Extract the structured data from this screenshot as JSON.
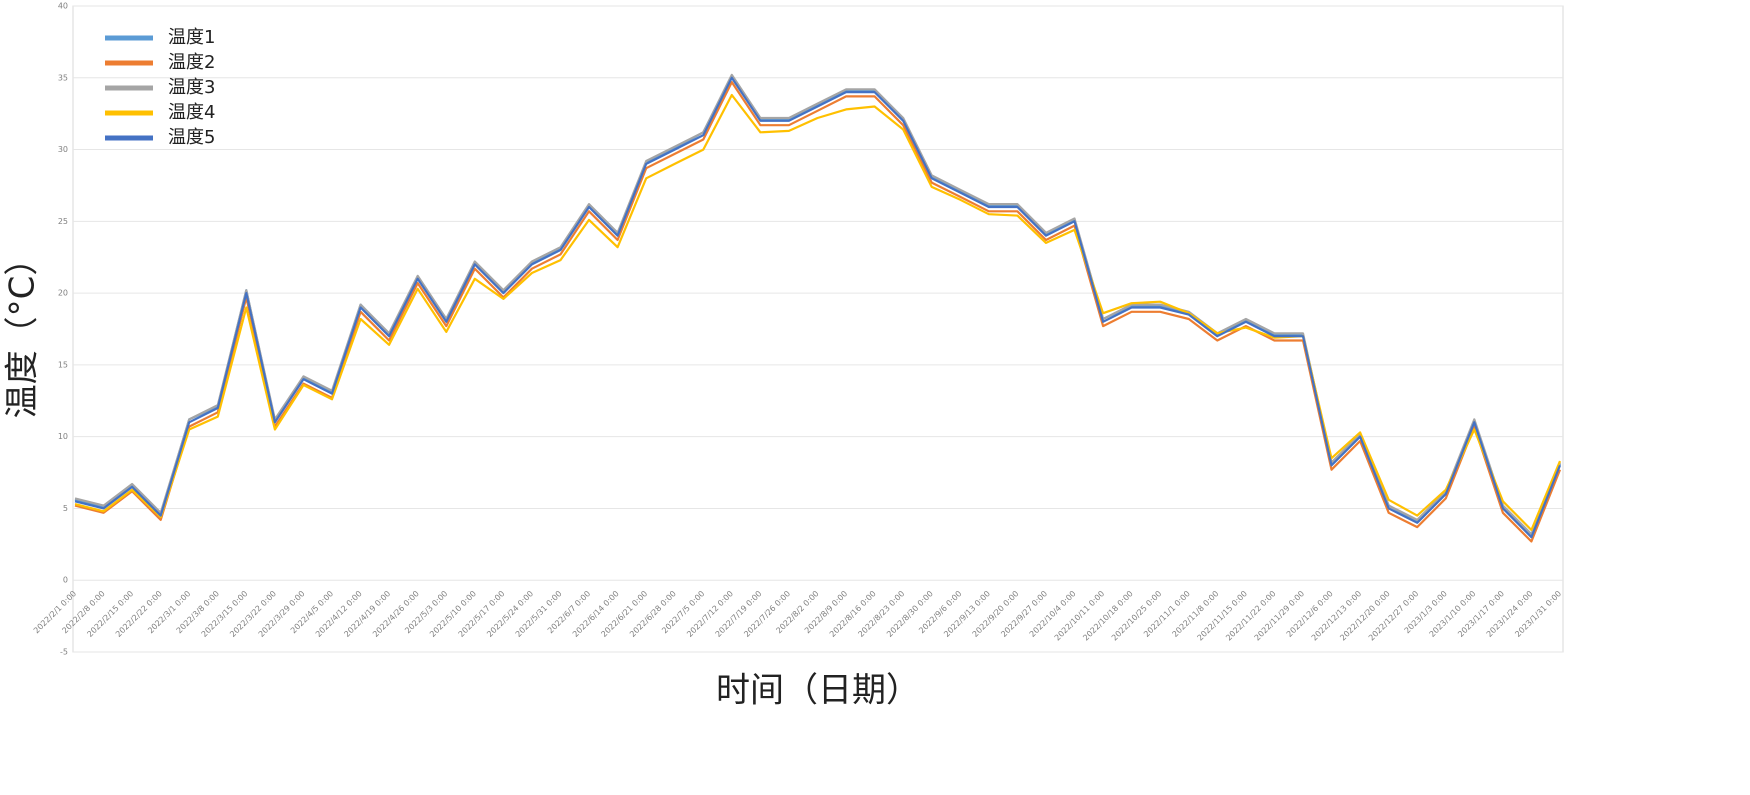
{
  "chart_data": {
    "type": "line",
    "y_label": "温度（°C）",
    "x_label": "时间（日期）",
    "categories": [
      "2022/2/1 0:00",
      "2022/2/8 0:00",
      "2022/2/15 0:00",
      "2022/2/22 0:00",
      "2022/3/1 0:00",
      "2022/3/8 0:00",
      "2022/3/15 0:00",
      "2022/3/22 0:00",
      "2022/3/29 0:00",
      "2022/4/5 0:00",
      "2022/4/12 0:00",
      "2022/4/19 0:00",
      "2022/4/26 0:00",
      "2022/5/3 0:00",
      "2022/5/10 0:00",
      "2022/5/17 0:00",
      "2022/5/24 0:00",
      "2022/5/31 0:00",
      "2022/6/7 0:00",
      "2022/6/14 0:00",
      "2022/6/21 0:00",
      "2022/6/28 0:00",
      "2022/7/5 0:00",
      "2022/7/12 0:00",
      "2022/7/19 0:00",
      "2022/7/26 0:00",
      "2022/8/2 0:00",
      "2022/8/9 0:00",
      "2022/8/16 0:00",
      "2022/8/23 0:00",
      "2022/8/30 0:00",
      "2022/9/6 0:00",
      "2022/9/13 0:00",
      "2022/9/20 0:00",
      "2022/9/27 0:00",
      "2022/10/4 0:00",
      "2022/10/11 0:00",
      "2022/10/18 0:00",
      "2022/10/25 0:00",
      "2022/11/1 0:00",
      "2022/11/8 0:00",
      "2022/11/15 0:00",
      "2022/11/22 0:00",
      "2022/11/29 0:00",
      "2022/12/6 0:00",
      "2022/12/13 0:00",
      "2022/12/20 0:00",
      "2022/12/27 0:00",
      "2023/1/3 0:00",
      "2023/1/10 0:00",
      "2023/1/17 0:00",
      "2023/1/24 0:00",
      "2023/1/31 0:00"
    ],
    "series": [
      {
        "name": "温度1",
        "color": "#5b9bd5",
        "values": [
          5.6,
          5.1,
          6.6,
          4.6,
          11.2,
          12.1,
          20.2,
          11.1,
          14.1,
          13.1,
          19.2,
          17.1,
          21.1,
          18.2,
          22.1,
          20.1,
          22.1,
          23.1,
          26.1,
          24.1,
          29.1,
          30.1,
          31.2,
          35.1,
          32.1,
          32.1,
          33.1,
          34.1,
          34.1,
          32.1,
          28.1,
          27.1,
          26.1,
          26.1,
          24.1,
          25.1,
          18.2,
          19.1,
          19.1,
          18.6,
          17.1,
          18.1,
          17.1,
          17.1,
          8.2,
          10.1,
          5.2,
          4.1,
          6.1,
          11.1,
          5.2,
          3.2,
          8.1
        ]
      },
      {
        "name": "温度2",
        "color": "#ed7d31",
        "values": [
          5.2,
          4.7,
          6.2,
          4.2,
          10.7,
          11.7,
          19.7,
          10.7,
          13.7,
          12.7,
          18.7,
          16.7,
          20.7,
          17.7,
          21.7,
          19.7,
          21.7,
          22.7,
          25.7,
          23.7,
          28.7,
          29.7,
          30.7,
          34.7,
          31.7,
          31.7,
          32.7,
          33.7,
          33.7,
          31.7,
          27.7,
          26.7,
          25.7,
          25.7,
          23.7,
          24.7,
          17.7,
          18.7,
          18.7,
          18.2,
          16.7,
          17.7,
          16.7,
          16.7,
          7.7,
          9.7,
          4.7,
          3.7,
          5.7,
          10.7,
          4.7,
          2.7,
          7.7
        ]
      },
      {
        "name": "温度3",
        "color": "#a5a5a5",
        "values": [
          5.7,
          5.2,
          6.7,
          4.7,
          11.2,
          12.2,
          20.2,
          11.2,
          14.2,
          13.2,
          19.2,
          17.2,
          21.2,
          18.2,
          22.2,
          20.2,
          22.2,
          23.2,
          26.2,
          24.2,
          29.2,
          30.2,
          31.2,
          35.2,
          32.2,
          32.2,
          33.2,
          34.2,
          34.2,
          32.2,
          28.2,
          27.2,
          26.2,
          26.2,
          24.2,
          25.2,
          18.2,
          19.2,
          19.2,
          18.7,
          17.2,
          18.2,
          17.2,
          17.2,
          8.2,
          10.2,
          5.2,
          4.2,
          6.2,
          11.2,
          5.2,
          3.2,
          8.2
        ]
      },
      {
        "name": "温度4",
        "color": "#ffc000",
        "values": [
          5.3,
          4.8,
          6.3,
          4.4,
          10.5,
          11.4,
          19,
          10.5,
          13.6,
          12.6,
          18.2,
          16.4,
          20.3,
          17.3,
          21,
          19.6,
          21.4,
          22.3,
          25.1,
          23.2,
          28,
          29,
          30,
          33.8,
          31.2,
          31.3,
          32.2,
          32.8,
          33,
          31.4,
          27.4,
          26.5,
          25.5,
          25.4,
          23.5,
          24.4,
          18.6,
          19.3,
          19.4,
          18.6,
          17.2,
          17.6,
          16.9,
          17,
          8.5,
          10.3,
          5.6,
          4.5,
          6.3,
          10.5,
          5.5,
          3.5,
          8.3
        ]
      },
      {
        "name": "温度5",
        "color": "#4472c4",
        "values": [
          5.5,
          5,
          6.5,
          4.5,
          11,
          12,
          20,
          11,
          14,
          13,
          19,
          17,
          21,
          18,
          22,
          20,
          22,
          23,
          26,
          24,
          29,
          30,
          31,
          35,
          32,
          32,
          33,
          34,
          34,
          32,
          28,
          27,
          26,
          26,
          24,
          25,
          18,
          19,
          19,
          18.5,
          17,
          18,
          17,
          17,
          8,
          10,
          5,
          4,
          6,
          11,
          5,
          3,
          8
        ]
      }
    ],
    "ylim": [
      -5,
      40
    ],
    "yticks": [
      -5,
      0,
      5,
      10,
      15,
      20,
      25,
      30,
      35,
      40
    ],
    "grid": true,
    "legend": "top-left"
  }
}
